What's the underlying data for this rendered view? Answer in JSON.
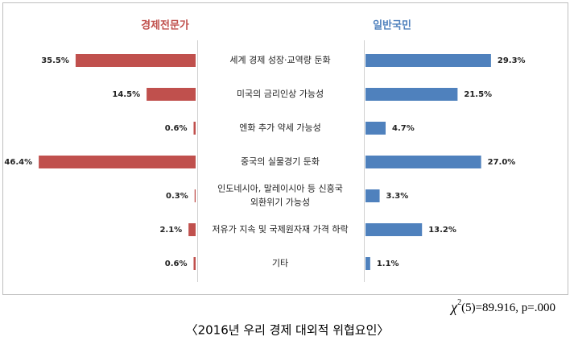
{
  "chart_data": {
    "type": "butterfly",
    "categories": [
      "세계 경제 성장·교역량 둔화",
      "미국의 금리인상 가능성",
      "엔화 추가 약세 가능성",
      "중국의 실물경기 둔화",
      [
        "인도네시아, 말레이시아 등 신흥국",
        "외환위기 가능성"
      ],
      "저유가 지속 및 국제원자재 가격 하락",
      "기타"
    ],
    "series": [
      {
        "name": "경제전문가",
        "color": "#c0504d",
        "side": "left",
        "values": [
          35.5,
          14.5,
          0.6,
          46.4,
          0.3,
          2.1,
          0.6
        ],
        "value_labels": [
          "35.5%",
          "14.5%",
          "0.6%",
          "46.4%",
          "0.3%",
          "2.1%",
          "0.6%"
        ]
      },
      {
        "name": "일반국민",
        "color": "#4f81bd",
        "side": "right",
        "values": [
          29.3,
          21.5,
          4.7,
          27.0,
          3.3,
          13.2,
          1.1
        ],
        "value_labels": [
          "29.3%",
          "21.5%",
          "4.7%",
          "27.0%",
          "3.3%",
          "13.2%",
          "1.1%"
        ]
      }
    ],
    "statistic": {
      "symbol": "χ",
      "superscript": "2",
      "text": "(5)=89.916,  p=.000"
    },
    "caption": "〈2016년 우리 경제 대외적 위협요인〉"
  }
}
